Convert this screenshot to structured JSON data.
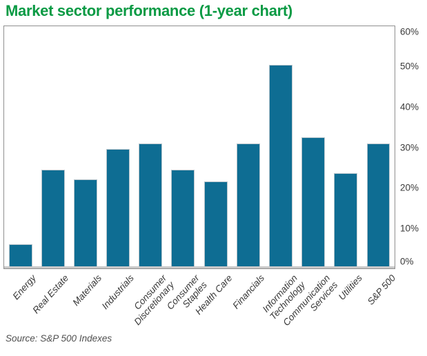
{
  "title": "Market sector performance (1-year chart)",
  "source": "Source: S&P 500 Indexes",
  "colors": {
    "title_green": "#0a9a44",
    "bar_fill": "#0e6d93",
    "bar_stroke": "#b7c4cb",
    "plot_border": "#8f8f8f",
    "baseline_gray": "#c9c9c9",
    "tick_text": "#3a3a3a"
  },
  "chart_data": {
    "type": "bar",
    "title": "Market sector performance (1-year chart)",
    "categories": [
      "Energy",
      "Real Estate",
      "Materials",
      "Industrials",
      "Consumer\nDiscretionary",
      "Consumer\nStaples",
      "Health Care",
      "Financials",
      "Information\nTechnology",
      "Communication\nServices",
      "Utilities",
      "S&P 500"
    ],
    "values": [
      5.5,
      24,
      21.5,
      29,
      30.5,
      24,
      21,
      30.5,
      50,
      32,
      23,
      30.5
    ],
    "unit": "%",
    "xlabel": "",
    "ylabel": "",
    "ylim": [
      0,
      60
    ],
    "yticks": [
      "60%",
      "50%",
      "40%",
      "30%",
      "20%",
      "10%",
      "0%"
    ],
    "y_axis_side": "right",
    "grid": false,
    "legend": "none",
    "bar_color": "#0e6d93",
    "source": "Source: S&P 500 Indexes"
  }
}
